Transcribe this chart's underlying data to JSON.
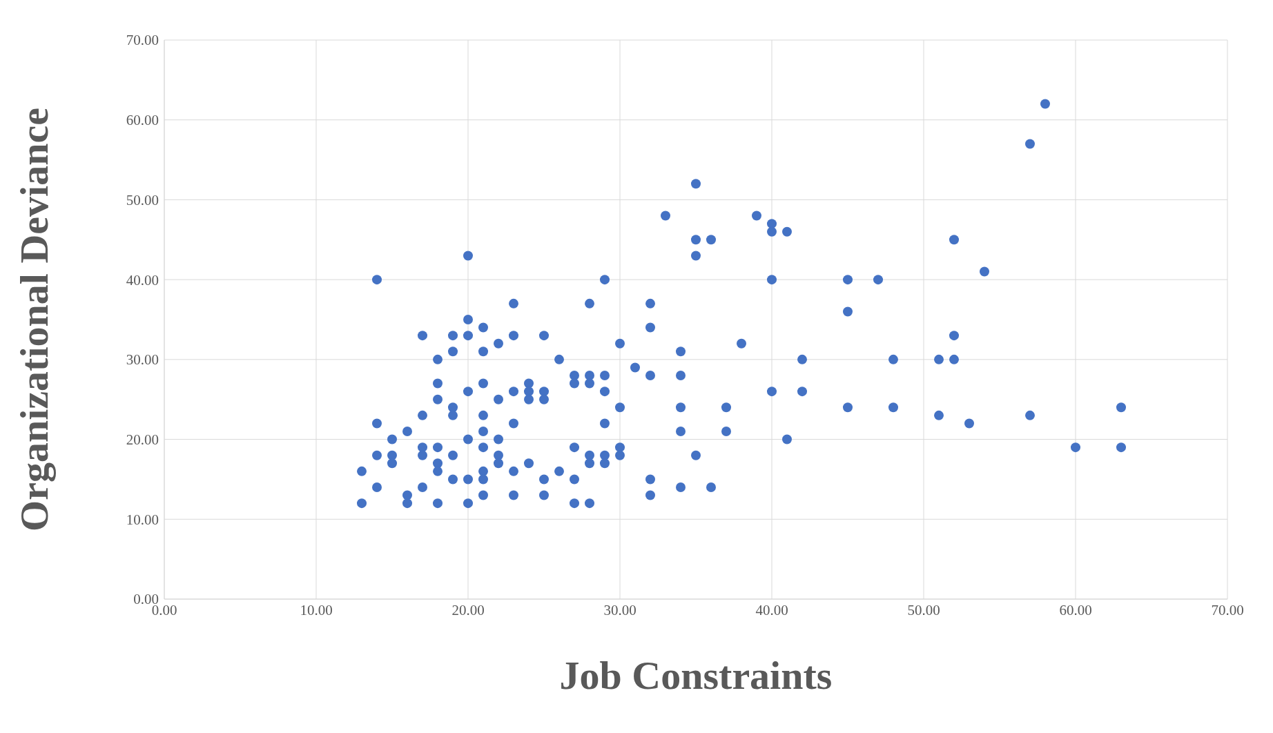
{
  "chart_data": {
    "type": "scatter",
    "xlabel": "Job Constraints",
    "ylabel": "Organizational Deviance",
    "x": [
      13,
      13,
      14,
      14,
      14,
      14,
      15,
      15,
      15,
      16,
      16,
      16,
      17,
      17,
      17,
      17,
      17,
      18,
      18,
      18,
      18,
      18,
      18,
      18,
      19,
      19,
      19,
      19,
      19,
      19,
      20,
      20,
      20,
      20,
      20,
      20,
      20,
      21,
      21,
      21,
      21,
      21,
      21,
      21,
      21,
      21,
      22,
      22,
      22,
      22,
      22,
      23,
      23,
      23,
      23,
      23,
      23,
      24,
      24,
      24,
      24,
      25,
      25,
      25,
      25,
      25,
      26,
      26,
      27,
      27,
      27,
      27,
      27,
      28,
      28,
      28,
      28,
      28,
      28,
      29,
      29,
      29,
      29,
      29,
      29,
      30,
      30,
      30,
      30,
      31,
      32,
      32,
      32,
      32,
      32,
      33,
      34,
      34,
      34,
      34,
      34,
      35,
      35,
      35,
      35,
      36,
      36,
      37,
      37,
      38,
      39,
      40,
      40,
      40,
      40,
      41,
      41,
      42,
      42,
      45,
      45,
      45,
      47,
      48,
      48,
      51,
      51,
      52,
      52,
      52,
      53,
      54,
      57,
      57,
      58,
      60,
      63,
      63
    ],
    "values": [
      16,
      12,
      40,
      22,
      18,
      14,
      20,
      18,
      17,
      21,
      13,
      12,
      33,
      23,
      19,
      18,
      14,
      30,
      27,
      25,
      19,
      17,
      16,
      12,
      33,
      31,
      24,
      23,
      18,
      15,
      43,
      35,
      33,
      26,
      20,
      15,
      12,
      34,
      31,
      27,
      23,
      21,
      19,
      16,
      15,
      13,
      32,
      25,
      20,
      18,
      17,
      37,
      33,
      26,
      22,
      16,
      13,
      27,
      26,
      25,
      17,
      33,
      26,
      25,
      15,
      13,
      30,
      16,
      28,
      27,
      19,
      15,
      12,
      37,
      28,
      27,
      18,
      17,
      12,
      40,
      28,
      26,
      22,
      18,
      17,
      32,
      24,
      19,
      18,
      29,
      37,
      34,
      28,
      15,
      13,
      48,
      31,
      28,
      24,
      21,
      14,
      52,
      45,
      43,
      18,
      45,
      14,
      24,
      21,
      32,
      48,
      47,
      46,
      40,
      26,
      46,
      20,
      30,
      26,
      40,
      36,
      24,
      40,
      30,
      24,
      30,
      23,
      45,
      33,
      30,
      22,
      41,
      57,
      23,
      62,
      19,
      24,
      19
    ],
    "color": "#4472c4",
    "marker": "circle",
    "grid": true,
    "xlim": [
      0,
      70
    ],
    "ylim": [
      0,
      70
    ],
    "xticks": [
      {
        "value": 0,
        "label": "0.00"
      },
      {
        "value": 10,
        "label": "10.00"
      },
      {
        "value": 20,
        "label": "20.00"
      },
      {
        "value": 30,
        "label": "30.00"
      },
      {
        "value": 40,
        "label": "40.00"
      },
      {
        "value": 50,
        "label": "50.00"
      },
      {
        "value": 60,
        "label": "60.00"
      },
      {
        "value": 70,
        "label": "70.00"
      }
    ],
    "yticks": [
      {
        "value": 0,
        "label": "0.00"
      },
      {
        "value": 10,
        "label": "10.00"
      },
      {
        "value": 20,
        "label": "20.00"
      },
      {
        "value": 30,
        "label": "30.00"
      },
      {
        "value": 40,
        "label": "40.00"
      },
      {
        "value": 50,
        "label": "50.00"
      },
      {
        "value": 60,
        "label": "60.00"
      },
      {
        "value": 70,
        "label": "70.00"
      }
    ]
  }
}
